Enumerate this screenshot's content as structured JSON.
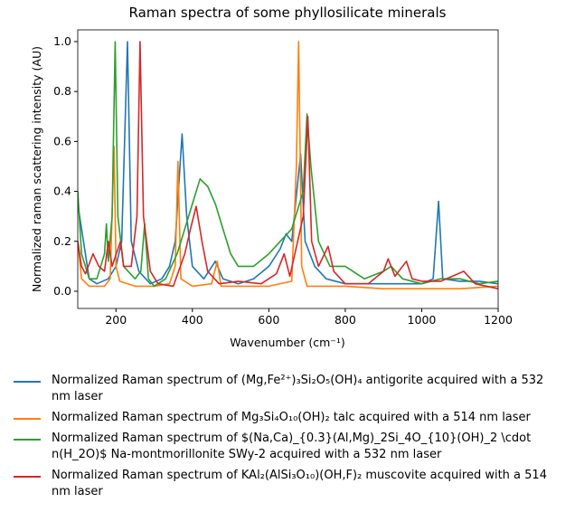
{
  "chart_data": {
    "type": "line",
    "title": "Raman spectra of some phyllosilicate minerals",
    "x_label": "Wavenumber (cm⁻¹)",
    "y_label": "Normalized raman scattering intensity (AU)",
    "xlim": [
      100,
      1200
    ],
    "ylim": [
      -0.069,
      1.047
    ],
    "xticks": [
      200,
      400,
      600,
      800,
      1000,
      1200
    ],
    "yticks": [
      {
        "value": 0,
        "label": "0.0"
      },
      {
        "value": 0.2,
        "label": "0.2"
      },
      {
        "value": 0.4,
        "label": "0.4"
      },
      {
        "value": 0.6,
        "label": "0.6"
      },
      {
        "value": 0.8,
        "label": "0.8"
      },
      {
        "value": 1,
        "label": "1.0"
      }
    ],
    "series": [
      {
        "name": "Normalized Raman spectrum of (Mg,Fe²⁺)₃Si₂O₅(OH)₄ antigorite acquired with a 532 nm laser",
        "color": "#1f77b4",
        "x": [
          100,
          130,
          150,
          180,
          200,
          215,
          230,
          240,
          260,
          290,
          320,
          340,
          355,
          373,
          385,
          400,
          430,
          460,
          480,
          520,
          560,
          600,
          630,
          645,
          660,
          683,
          695,
          720,
          750,
          800,
          900,
          1000,
          1030,
          1044,
          1055,
          1100,
          1150,
          1200
        ],
        "values": [
          0.35,
          0.05,
          0.03,
          0.05,
          0.1,
          0.2,
          1.0,
          0.2,
          0.08,
          0.03,
          0.05,
          0.1,
          0.2,
          0.63,
          0.3,
          0.1,
          0.05,
          0.12,
          0.05,
          0.03,
          0.05,
          0.1,
          0.17,
          0.23,
          0.2,
          0.55,
          0.2,
          0.1,
          0.05,
          0.03,
          0.03,
          0.03,
          0.05,
          0.36,
          0.05,
          0.04,
          0.04,
          0.03
        ]
      },
      {
        "name": "Normalized Raman spectrum of Mg₃Si₄O₁₀(OH)₂ talc acquired with a 514 nm laser",
        "color": "#ff7f0e",
        "x": [
          100,
          110,
          130,
          170,
          185,
          195,
          200,
          210,
          250,
          300,
          340,
          355,
          362,
          370,
          400,
          450,
          465,
          475,
          550,
          600,
          660,
          672,
          678,
          686,
          700,
          800,
          900,
          1000,
          1100,
          1200
        ],
        "values": [
          0.2,
          0.05,
          0.02,
          0.02,
          0.05,
          0.58,
          0.1,
          0.04,
          0.02,
          0.02,
          0.03,
          0.1,
          0.52,
          0.05,
          0.02,
          0.03,
          0.12,
          0.02,
          0.02,
          0.02,
          0.04,
          0.5,
          1.0,
          0.1,
          0.02,
          0.02,
          0.01,
          0.01,
          0.01,
          0.02
        ]
      },
      {
        "name": "Normalized Raman spectrum of $(Na,Ca)_{0.3}(Al,Mg)_2Si_4O_{10}(OH)_2 \\cdot n(H_2O)$ Na-montmorillonite SWy-2 acquired with a 532 nm laser",
        "color": "#2ca02c",
        "x": [
          100,
          110,
          130,
          150,
          170,
          175,
          180,
          190,
          198,
          205,
          220,
          250,
          265,
          275,
          285,
          300,
          330,
          360,
          380,
          400,
          420,
          440,
          460,
          480,
          500,
          520,
          560,
          600,
          630,
          660,
          690,
          700,
          710,
          730,
          760,
          800,
          850,
          900,
          920,
          950,
          1000,
          1050,
          1100,
          1150,
          1200
        ],
        "values": [
          0.4,
          0.15,
          0.05,
          0.05,
          0.15,
          0.27,
          0.12,
          0.3,
          1.0,
          0.3,
          0.1,
          0.05,
          0.08,
          0.27,
          0.05,
          0.02,
          0.05,
          0.15,
          0.25,
          0.35,
          0.45,
          0.42,
          0.35,
          0.25,
          0.15,
          0.1,
          0.1,
          0.15,
          0.2,
          0.25,
          0.4,
          0.71,
          0.5,
          0.2,
          0.1,
          0.1,
          0.05,
          0.08,
          0.1,
          0.05,
          0.03,
          0.05,
          0.05,
          0.03,
          0.04
        ]
      },
      {
        "name": "Normalized Raman spectrum of KAl₂(AlSi₃O₁₀)(OH,F)₂ muscovite acquired with a 514 nm laser",
        "color": "#d62728",
        "x": [
          100,
          110,
          120,
          140,
          155,
          170,
          180,
          190,
          212,
          220,
          240,
          255,
          263,
          272,
          290,
          310,
          350,
          380,
          395,
          410,
          425,
          440,
          470,
          520,
          580,
          620,
          640,
          655,
          690,
          702,
          712,
          730,
          755,
          770,
          800,
          860,
          900,
          912,
          930,
          960,
          975,
          1000,
          1050,
          1110,
          1140,
          1200
        ],
        "values": [
          0.2,
          0.1,
          0.07,
          0.15,
          0.1,
          0.08,
          0.2,
          0.1,
          0.2,
          0.1,
          0.1,
          0.3,
          1.0,
          0.3,
          0.08,
          0.03,
          0.02,
          0.15,
          0.25,
          0.34,
          0.2,
          0.08,
          0.03,
          0.04,
          0.03,
          0.07,
          0.15,
          0.06,
          0.3,
          0.7,
          0.2,
          0.1,
          0.18,
          0.08,
          0.03,
          0.03,
          0.08,
          0.13,
          0.06,
          0.12,
          0.05,
          0.04,
          0.04,
          0.08,
          0.03,
          0.01
        ]
      }
    ]
  }
}
